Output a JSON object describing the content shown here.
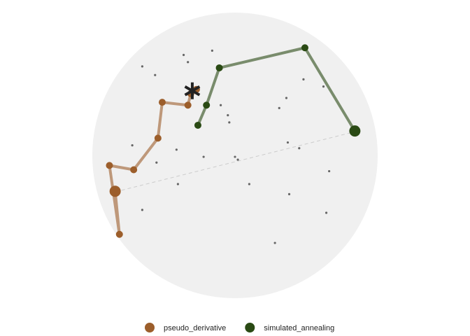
{
  "chart_data": {
    "type": "scatter",
    "xlim": [
      -1,
      1
    ],
    "ylim": [
      -1,
      1
    ],
    "background": {
      "color": "#666666",
      "x": [
        -0.36,
        -0.16,
        -0.65,
        -0.56,
        -0.33,
        0.48,
        0.62,
        0.36,
        0.31,
        -0.05,
        -0.04,
        -0.1,
        -0.72,
        -0.41,
        -0.22,
        0.0,
        0.02,
        -0.55,
        0.37,
        0.45,
        0.66,
        0.1,
        -0.4,
        0.38,
        -0.65,
        0.64,
        0.28
      ],
      "y": [
        0.7,
        0.73,
        0.62,
        0.56,
        0.65,
        0.53,
        0.48,
        0.4,
        0.33,
        0.28,
        0.23,
        0.35,
        0.07,
        0.04,
        -0.01,
        -0.01,
        -0.03,
        -0.05,
        0.09,
        0.05,
        -0.11,
        -0.2,
        -0.2,
        -0.27,
        -0.38,
        -0.4,
        -0.61
      ]
    },
    "series": [
      {
        "name": "pseudo_derivative",
        "color": "#9c5e2b",
        "x": [
          -0.84,
          -0.81,
          -0.88,
          -0.71,
          -0.54,
          -0.51,
          -0.33,
          -0.31,
          -0.27
        ],
        "y": [
          -0.25,
          -0.55,
          -0.07,
          -0.1,
          0.12,
          0.37,
          0.35,
          0.43,
          0.46
        ]
      },
      {
        "name": "simulated_annealing",
        "color": "#2a4a14",
        "x": [
          0.84,
          0.49,
          -0.11,
          -0.2,
          -0.26
        ],
        "y": [
          0.17,
          0.75,
          0.61,
          0.35,
          0.21
        ]
      }
    ]
  }
}
